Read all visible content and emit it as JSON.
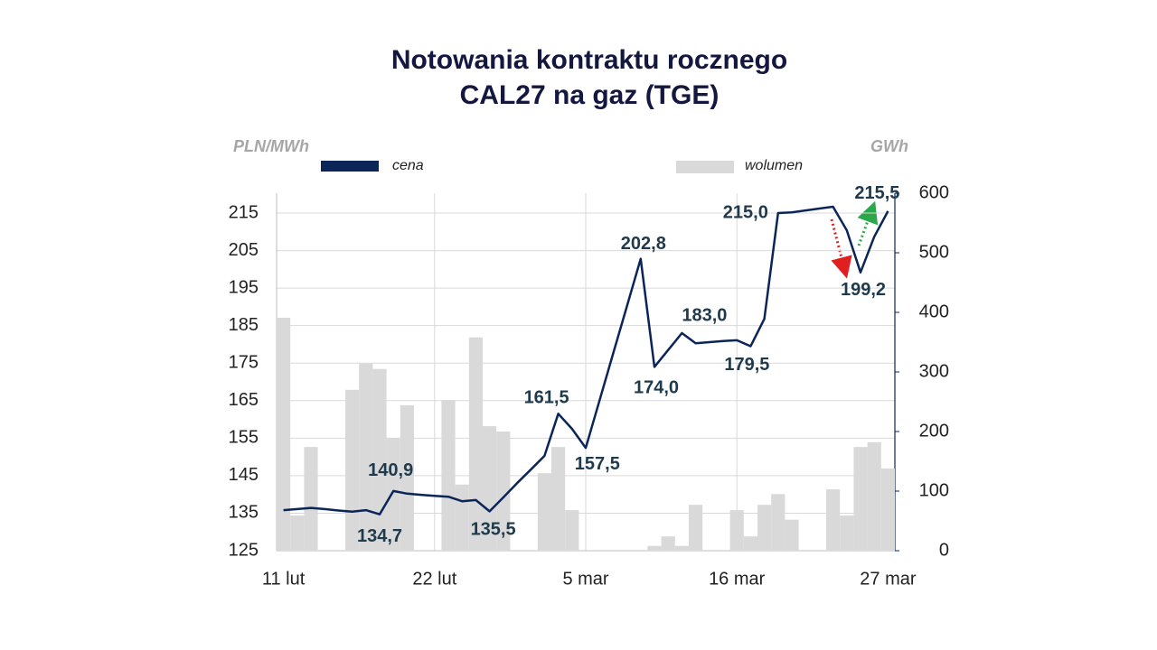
{
  "chart_data": {
    "type": "line",
    "title": [
      "Notowania kontraktu rocznego",
      "CAL27 na gaz (TGE)"
    ],
    "ylabel": "PLN/MWh",
    "y2label": "GWh",
    "categories": [
      "11 lut",
      null,
      null,
      null,
      null,
      null,
      null,
      null,
      null,
      null,
      null,
      "22 lut",
      null,
      null,
      null,
      null,
      null,
      null,
      null,
      null,
      null,
      null,
      "5 mar",
      null,
      null,
      null,
      null,
      null,
      null,
      null,
      null,
      null,
      null,
      "16 mar",
      null,
      null,
      null,
      null,
      null,
      null,
      null,
      null,
      null,
      null,
      "27 mar"
    ],
    "series": [
      {
        "name": "cena",
        "type": "line",
        "color": "#0b2559",
        "values": [
          135.8,
          136.1,
          136.4,
          136.1,
          135.7,
          135.4,
          135.8,
          134.7,
          140.9,
          140.2,
          139.9,
          139.6,
          139.4,
          138.2,
          138.5,
          135.5,
          139.2,
          143.0,
          146.6,
          150.3,
          161.5,
          157.5,
          152.4,
          165.0,
          177.6,
          190.2,
          202.8,
          174.0,
          178.5,
          183.0,
          180.3,
          180.6,
          180.9,
          181.1,
          179.5,
          186.8,
          215.0,
          215.2,
          215.7,
          216.2,
          216.7,
          210.4,
          199.2,
          208.7,
          215.5
        ],
        "value_labels": [
          null,
          null,
          null,
          null,
          null,
          null,
          null,
          "134,7",
          "140,9",
          null,
          null,
          null,
          null,
          null,
          null,
          "135,5",
          null,
          null,
          null,
          null,
          "161,5",
          "157,5",
          null,
          null,
          null,
          null,
          "202,8",
          "174,0",
          null,
          "183,0",
          null,
          null,
          null,
          null,
          "179,5",
          null,
          "215,0",
          null,
          null,
          null,
          null,
          null,
          "199,2",
          null,
          "215,5"
        ]
      },
      {
        "name": "wolumen",
        "type": "bar",
        "axis": "y2",
        "color": "#d9d9d9",
        "values": [
          391,
          59,
          174,
          null,
          null,
          270,
          314,
          305,
          189,
          244,
          null,
          null,
          253,
          111,
          358,
          209,
          200,
          null,
          null,
          130,
          174,
          68,
          0,
          0,
          null,
          null,
          0,
          8,
          24,
          8,
          77,
          null,
          null,
          68,
          24,
          77,
          95,
          52,
          null,
          null,
          103,
          59,
          174,
          182,
          138
        ]
      }
    ],
    "ylim": [
      125,
      220.3
    ],
    "yticks": [
      125,
      135,
      145,
      155,
      165,
      175,
      185,
      195,
      205,
      215
    ],
    "y2lim": [
      0,
      600
    ],
    "y2ticks": [
      0,
      100,
      200,
      300,
      400,
      500,
      600
    ],
    "grid": true
  }
}
